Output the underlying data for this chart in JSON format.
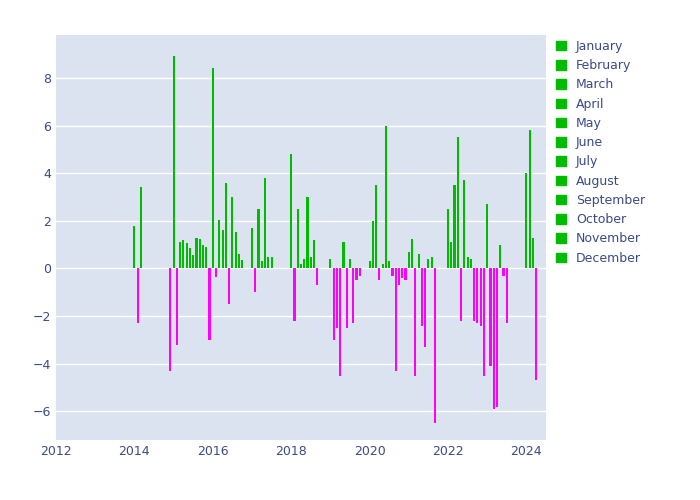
{
  "fig_bg_color": "#ffffff",
  "plot_bg_color": "#dce3f0",
  "positive_color": "#00bb00",
  "negative_color": "#ff00ff",
  "xlim": [
    2012,
    2024.5
  ],
  "ylim": [
    -7.2,
    9.8
  ],
  "yticks": [
    -6,
    -4,
    -2,
    0,
    2,
    4,
    6,
    8
  ],
  "xticks": [
    2012,
    2014,
    2016,
    2018,
    2020,
    2022,
    2024
  ],
  "tick_color": "#3a4a8a",
  "grid_color": "#ffffff",
  "months": [
    "January",
    "February",
    "March",
    "April",
    "May",
    "June",
    "July",
    "August",
    "September",
    "October",
    "November",
    "December"
  ],
  "data": [
    [
      2014,
      1,
      1.8
    ],
    [
      2014,
      2,
      -2.3
    ],
    [
      2014,
      3,
      3.4
    ],
    [
      2014,
      12,
      -4.3
    ],
    [
      2015,
      1,
      8.9
    ],
    [
      2015,
      2,
      -3.2
    ],
    [
      2015,
      3,
      1.1
    ],
    [
      2015,
      4,
      1.2
    ],
    [
      2015,
      5,
      1.05
    ],
    [
      2015,
      6,
      0.85
    ],
    [
      2015,
      7,
      0.55
    ],
    [
      2015,
      8,
      1.3
    ],
    [
      2015,
      9,
      1.25
    ],
    [
      2015,
      10,
      1.0
    ],
    [
      2015,
      11,
      0.9
    ],
    [
      2015,
      12,
      -3.0
    ],
    [
      2016,
      1,
      8.4
    ],
    [
      2016,
      2,
      -0.35
    ],
    [
      2016,
      3,
      2.05
    ],
    [
      2016,
      4,
      1.6
    ],
    [
      2016,
      5,
      3.6
    ],
    [
      2016,
      6,
      -1.5
    ],
    [
      2016,
      7,
      3.0
    ],
    [
      2016,
      8,
      1.55
    ],
    [
      2016,
      9,
      0.6
    ],
    [
      2016,
      10,
      0.35
    ],
    [
      2017,
      1,
      1.7
    ],
    [
      2017,
      2,
      -1.0
    ],
    [
      2017,
      3,
      2.5
    ],
    [
      2017,
      4,
      0.3
    ],
    [
      2017,
      5,
      3.8
    ],
    [
      2017,
      6,
      0.5
    ],
    [
      2017,
      7,
      0.5
    ],
    [
      2018,
      1,
      4.8
    ],
    [
      2018,
      2,
      -2.2
    ],
    [
      2018,
      3,
      2.5
    ],
    [
      2018,
      4,
      0.2
    ],
    [
      2018,
      5,
      0.4
    ],
    [
      2018,
      6,
      3.0
    ],
    [
      2018,
      7,
      0.5
    ],
    [
      2018,
      8,
      1.2
    ],
    [
      2018,
      9,
      -0.7
    ],
    [
      2019,
      1,
      0.4
    ],
    [
      2019,
      2,
      -3.0
    ],
    [
      2019,
      3,
      -2.5
    ],
    [
      2019,
      4,
      -4.5
    ],
    [
      2019,
      5,
      1.1
    ],
    [
      2019,
      6,
      -2.5
    ],
    [
      2019,
      7,
      0.4
    ],
    [
      2019,
      8,
      -2.3
    ],
    [
      2019,
      9,
      -0.5
    ],
    [
      2019,
      10,
      -0.3
    ],
    [
      2020,
      1,
      0.3
    ],
    [
      2020,
      2,
      2.0
    ],
    [
      2020,
      3,
      3.5
    ],
    [
      2020,
      4,
      -0.5
    ],
    [
      2020,
      5,
      0.2
    ],
    [
      2020,
      6,
      6.0
    ],
    [
      2020,
      7,
      0.3
    ],
    [
      2020,
      8,
      -0.3
    ],
    [
      2020,
      9,
      -4.3
    ],
    [
      2020,
      10,
      -0.7
    ],
    [
      2020,
      11,
      -0.4
    ],
    [
      2020,
      12,
      -0.5
    ],
    [
      2021,
      1,
      0.7
    ],
    [
      2021,
      2,
      1.25
    ],
    [
      2021,
      3,
      -4.5
    ],
    [
      2021,
      4,
      0.6
    ],
    [
      2021,
      5,
      -2.4
    ],
    [
      2021,
      6,
      -3.3
    ],
    [
      2021,
      7,
      0.4
    ],
    [
      2021,
      8,
      0.5
    ],
    [
      2021,
      9,
      -6.5
    ],
    [
      2022,
      1,
      2.5
    ],
    [
      2022,
      2,
      1.1
    ],
    [
      2022,
      3,
      3.5
    ],
    [
      2022,
      4,
      5.5
    ],
    [
      2022,
      5,
      -2.2
    ],
    [
      2022,
      6,
      3.7
    ],
    [
      2022,
      7,
      0.5
    ],
    [
      2022,
      8,
      0.4
    ],
    [
      2022,
      9,
      -2.2
    ],
    [
      2022,
      10,
      -2.3
    ],
    [
      2022,
      11,
      -2.4
    ],
    [
      2022,
      12,
      -4.5
    ],
    [
      2023,
      1,
      2.7
    ],
    [
      2023,
      2,
      -4.1
    ],
    [
      2023,
      3,
      -5.9
    ],
    [
      2023,
      4,
      -5.8
    ],
    [
      2023,
      5,
      1.0
    ],
    [
      2023,
      6,
      -0.3
    ],
    [
      2023,
      7,
      -2.3
    ],
    [
      2024,
      1,
      4.0
    ],
    [
      2024,
      2,
      5.8
    ],
    [
      2024,
      3,
      1.3
    ],
    [
      2024,
      4,
      -4.7
    ]
  ]
}
